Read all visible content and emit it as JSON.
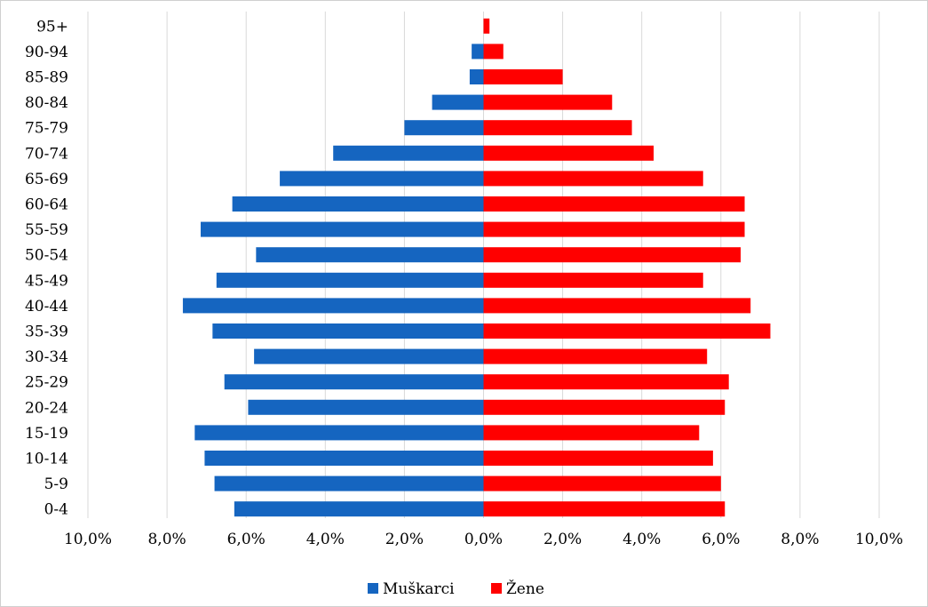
{
  "chart_data": {
    "type": "bar",
    "orientation": "horizontal",
    "title": "",
    "xlabel": "",
    "ylabel": "",
    "xlim": [
      -10,
      10
    ],
    "grid": true,
    "legend_position": "bottom",
    "categories": [
      "0-4",
      "5-9",
      "10-14",
      "15-19",
      "20-24",
      "25-29",
      "30-34",
      "35-39",
      "40-44",
      "45-49",
      "50-54",
      "55-59",
      "60-64",
      "65-69",
      "70-74",
      "75-79",
      "80-84",
      "85-89",
      "90-94",
      "95+"
    ],
    "x_ticks": [
      -10,
      -8,
      -6,
      -4,
      -2,
      0,
      2,
      4,
      6,
      8,
      10
    ],
    "x_tick_labels": [
      "10,0%",
      "8,0%",
      "6,0%",
      "4,0%",
      "2,0%",
      "0,0%",
      "2,0%",
      "4,0%",
      "6,0%",
      "8,0%",
      "10,0%"
    ],
    "series": [
      {
        "name": "Muškarci",
        "color": "#1565c0",
        "values": [
          6.3,
          6.8,
          7.05,
          7.3,
          5.95,
          6.55,
          5.8,
          6.85,
          7.6,
          6.75,
          5.75,
          7.15,
          6.35,
          5.15,
          3.8,
          2.0,
          1.3,
          0.35,
          0.3,
          0.0
        ]
      },
      {
        "name": "Žene",
        "color": "#ff0000",
        "values": [
          6.1,
          6.0,
          5.8,
          5.45,
          6.1,
          6.2,
          5.65,
          7.25,
          6.75,
          5.55,
          6.5,
          6.6,
          6.6,
          5.55,
          4.3,
          3.75,
          3.25,
          2.0,
          0.5,
          0.15
        ]
      }
    ]
  }
}
